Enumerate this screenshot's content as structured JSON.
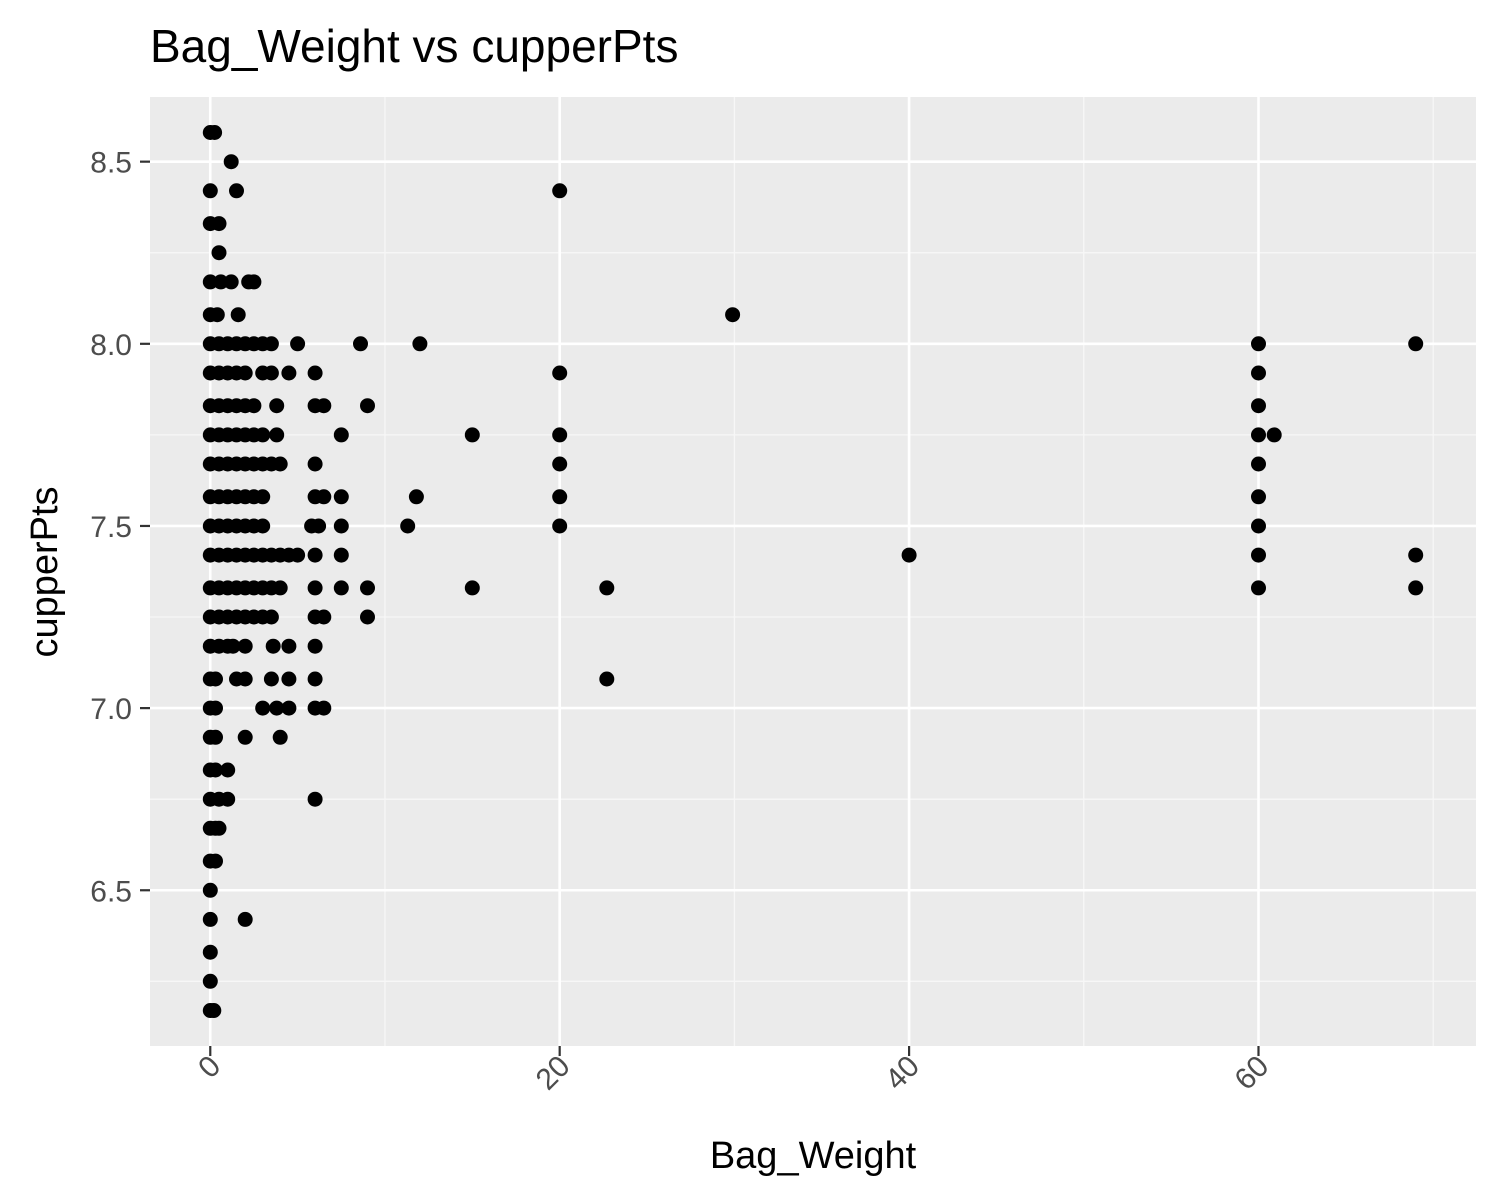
{
  "chart_data": {
    "type": "scatter",
    "title": "Bag_Weight vs cupperPts",
    "xlabel": "Bag_Weight",
    "ylabel": "cupperPts",
    "xlim": [
      -3.45,
      72.45
    ],
    "ylim": [
      6.0725,
      8.6775
    ],
    "x_ticks": [
      0,
      20,
      40,
      60
    ],
    "x_tick_labels": [
      "0",
      "20",
      "40",
      "60"
    ],
    "y_ticks": [
      6.5,
      7.0,
      7.5,
      8.0,
      8.5
    ],
    "y_tick_labels": [
      "6.5",
      "7.0",
      "7.5",
      "8.0",
      "8.5"
    ],
    "x_tick_rotation_deg": 45,
    "grid": true,
    "legend": "none",
    "colors": {
      "panel_background": "#ebebeb",
      "grid_major": "#ffffff",
      "grid_minor": "#f7f7f7",
      "point": "#000000",
      "tick_label": "#4d4d4d",
      "tick_mark": "#333333"
    },
    "series": [
      {
        "points": [
          [
            0,
            8.58
          ],
          [
            0.25,
            8.58
          ],
          [
            1.2,
            8.5
          ],
          [
            0,
            8.42
          ],
          [
            1.5,
            8.42
          ],
          [
            20,
            8.42
          ],
          [
            0,
            8.33
          ],
          [
            0.5,
            8.33
          ],
          [
            0.5,
            8.25
          ],
          [
            0,
            8.17
          ],
          [
            0.6,
            8.17
          ],
          [
            1.2,
            8.17
          ],
          [
            2.2,
            8.17
          ],
          [
            2.5,
            8.17
          ],
          [
            0,
            8.08
          ],
          [
            0.4,
            8.08
          ],
          [
            1.6,
            8.08
          ],
          [
            29.9,
            8.08
          ],
          [
            0,
            8.0
          ],
          [
            0.5,
            8.0
          ],
          [
            1,
            8.0
          ],
          [
            1.5,
            8.0
          ],
          [
            2,
            8.0
          ],
          [
            2.5,
            8.0
          ],
          [
            3,
            8.0
          ],
          [
            3.5,
            8.0
          ],
          [
            5,
            8.0
          ],
          [
            8.6,
            8.0
          ],
          [
            12,
            8.0
          ],
          [
            60,
            8.0
          ],
          [
            69,
            8.0
          ],
          [
            0,
            7.92
          ],
          [
            0.5,
            7.92
          ],
          [
            1,
            7.92
          ],
          [
            1.5,
            7.92
          ],
          [
            2,
            7.92
          ],
          [
            3,
            7.92
          ],
          [
            3.5,
            7.92
          ],
          [
            4.5,
            7.92
          ],
          [
            6,
            7.92
          ],
          [
            20,
            7.92
          ],
          [
            60,
            7.92
          ],
          [
            0,
            7.83
          ],
          [
            0.5,
            7.83
          ],
          [
            1,
            7.83
          ],
          [
            1.5,
            7.83
          ],
          [
            2,
            7.83
          ],
          [
            2.5,
            7.83
          ],
          [
            3.8,
            7.83
          ],
          [
            6,
            7.83
          ],
          [
            6.5,
            7.83
          ],
          [
            9,
            7.83
          ],
          [
            60,
            7.83
          ],
          [
            0,
            7.75
          ],
          [
            0.5,
            7.75
          ],
          [
            1,
            7.75
          ],
          [
            1.5,
            7.75
          ],
          [
            2,
            7.75
          ],
          [
            2.5,
            7.75
          ],
          [
            3,
            7.75
          ],
          [
            3.8,
            7.75
          ],
          [
            7.5,
            7.75
          ],
          [
            15,
            7.75
          ],
          [
            20,
            7.75
          ],
          [
            60,
            7.75
          ],
          [
            60.9,
            7.75
          ],
          [
            0,
            7.67
          ],
          [
            0.5,
            7.67
          ],
          [
            1,
            7.67
          ],
          [
            1.5,
            7.67
          ],
          [
            2,
            7.67
          ],
          [
            2.5,
            7.67
          ],
          [
            3,
            7.67
          ],
          [
            3.5,
            7.67
          ],
          [
            4,
            7.67
          ],
          [
            6,
            7.67
          ],
          [
            20,
            7.67
          ],
          [
            60,
            7.67
          ],
          [
            0,
            7.58
          ],
          [
            0.5,
            7.58
          ],
          [
            1,
            7.58
          ],
          [
            1.5,
            7.58
          ],
          [
            2,
            7.58
          ],
          [
            2.5,
            7.58
          ],
          [
            3,
            7.58
          ],
          [
            6,
            7.58
          ],
          [
            6.5,
            7.58
          ],
          [
            7.5,
            7.58
          ],
          [
            11.8,
            7.58
          ],
          [
            20,
            7.58
          ],
          [
            60,
            7.58
          ],
          [
            0,
            7.5
          ],
          [
            0.5,
            7.5
          ],
          [
            1,
            7.5
          ],
          [
            1.5,
            7.5
          ],
          [
            2,
            7.5
          ],
          [
            2.5,
            7.5
          ],
          [
            3,
            7.5
          ],
          [
            5.8,
            7.5
          ],
          [
            6.2,
            7.5
          ],
          [
            7.5,
            7.5
          ],
          [
            11.3,
            7.5
          ],
          [
            20,
            7.5
          ],
          [
            60,
            7.5
          ],
          [
            0,
            7.42
          ],
          [
            0.5,
            7.42
          ],
          [
            1,
            7.42
          ],
          [
            1.5,
            7.42
          ],
          [
            2,
            7.42
          ],
          [
            2.5,
            7.42
          ],
          [
            3,
            7.42
          ],
          [
            3.5,
            7.42
          ],
          [
            4,
            7.42
          ],
          [
            4.5,
            7.42
          ],
          [
            5,
            7.42
          ],
          [
            6,
            7.42
          ],
          [
            7.5,
            7.42
          ],
          [
            40,
            7.42
          ],
          [
            60,
            7.42
          ],
          [
            69,
            7.42
          ],
          [
            0,
            7.33
          ],
          [
            0.5,
            7.33
          ],
          [
            1,
            7.33
          ],
          [
            1.5,
            7.33
          ],
          [
            2,
            7.33
          ],
          [
            2.5,
            7.33
          ],
          [
            3,
            7.33
          ],
          [
            3.5,
            7.33
          ],
          [
            4,
            7.33
          ],
          [
            6,
            7.33
          ],
          [
            7.5,
            7.33
          ],
          [
            9,
            7.33
          ],
          [
            15,
            7.33
          ],
          [
            22.7,
            7.33
          ],
          [
            60,
            7.33
          ],
          [
            69,
            7.33
          ],
          [
            0,
            7.25
          ],
          [
            0.5,
            7.25
          ],
          [
            1,
            7.25
          ],
          [
            1.5,
            7.25
          ],
          [
            2,
            7.25
          ],
          [
            2.5,
            7.25
          ],
          [
            3,
            7.25
          ],
          [
            3.5,
            7.25
          ],
          [
            6,
            7.25
          ],
          [
            6.5,
            7.25
          ],
          [
            9,
            7.25
          ],
          [
            0,
            7.17
          ],
          [
            0.5,
            7.17
          ],
          [
            1,
            7.17
          ],
          [
            1.3,
            7.17
          ],
          [
            2,
            7.17
          ],
          [
            3.6,
            7.17
          ],
          [
            4.5,
            7.17
          ],
          [
            6,
            7.17
          ],
          [
            0,
            7.08
          ],
          [
            0.3,
            7.08
          ],
          [
            1.5,
            7.08
          ],
          [
            2,
            7.08
          ],
          [
            3.5,
            7.08
          ],
          [
            4.5,
            7.08
          ],
          [
            6,
            7.08
          ],
          [
            22.7,
            7.08
          ],
          [
            0,
            7.0
          ],
          [
            0.3,
            7.0
          ],
          [
            3,
            7.0
          ],
          [
            3.8,
            7.0
          ],
          [
            4.5,
            7.0
          ],
          [
            6,
            7.0
          ],
          [
            6.5,
            7.0
          ],
          [
            0,
            6.92
          ],
          [
            0.3,
            6.92
          ],
          [
            2,
            6.92
          ],
          [
            4,
            6.92
          ],
          [
            0,
            6.83
          ],
          [
            0.3,
            6.83
          ],
          [
            1,
            6.83
          ],
          [
            0,
            6.75
          ],
          [
            0.5,
            6.75
          ],
          [
            1,
            6.75
          ],
          [
            6,
            6.75
          ],
          [
            0,
            6.67
          ],
          [
            0.3,
            6.67
          ],
          [
            0.5,
            6.67
          ],
          [
            0,
            6.58
          ],
          [
            0.3,
            6.58
          ],
          [
            0,
            6.5
          ],
          [
            0,
            6.42
          ],
          [
            2,
            6.42
          ],
          [
            0,
            6.33
          ],
          [
            0,
            6.25
          ],
          [
            0,
            6.17
          ],
          [
            0.2,
            6.17
          ]
        ]
      }
    ]
  }
}
